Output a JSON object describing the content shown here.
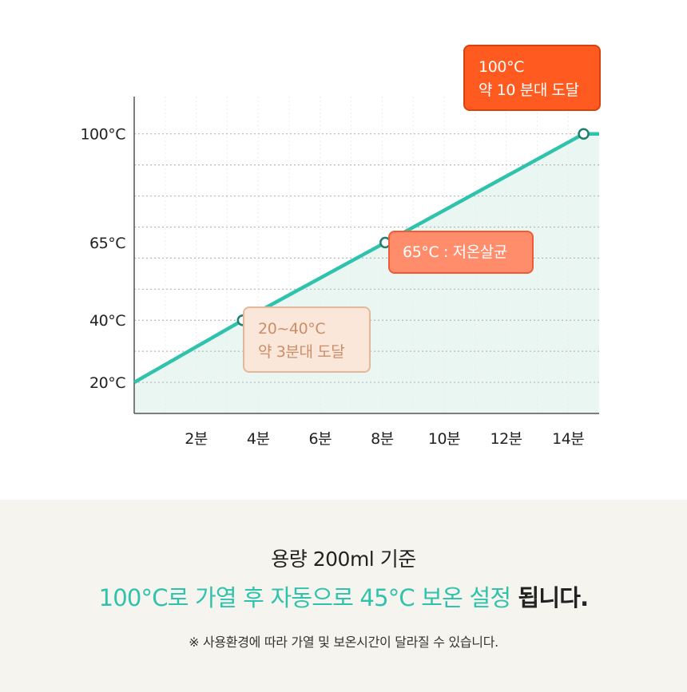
{
  "chart_data": {
    "type": "line",
    "x_unit": "분",
    "y_unit": "°C",
    "xlim": [
      0,
      15
    ],
    "ylim": [
      10,
      112
    ],
    "x_ticks": [
      2,
      4,
      6,
      8,
      10,
      12,
      14
    ],
    "x_tick_labels": [
      "2분",
      "4분",
      "6분",
      "8분",
      "10분",
      "12분",
      "14분"
    ],
    "y_ticks": [
      20,
      40,
      65,
      100
    ],
    "y_tick_labels": [
      "20°C",
      "40°C",
      "65°C",
      "100°C"
    ],
    "grid": true,
    "series": [
      {
        "x": [
          0,
          3.5,
          8.1,
          14.5,
          15
        ],
        "y": [
          20,
          40,
          65,
          100,
          100
        ],
        "markers": [
          1,
          2,
          3
        ],
        "color": "#2fc2ac",
        "fill": "#eaf6f2"
      }
    ],
    "annotations": [
      {
        "id": "low",
        "lines": [
          "20~40°C",
          "약 3분대 도달"
        ]
      },
      {
        "id": "mid",
        "lines": [
          "65°C : 저온살균"
        ]
      },
      {
        "id": "top",
        "lines": [
          "100°C",
          "약 10 분대 도달"
        ]
      }
    ]
  },
  "footer": {
    "basis": "용량 200ml 기준",
    "headline_highlight": "100°C로 가열 후 자동으로 45°C 보온 설정",
    "headline_tail": " 됩니다.",
    "note": "※ 사용환경에 따라 가열 및 보온시간이 달라질 수 있습니다."
  },
  "colors": {
    "line": "#2fc2ac",
    "area": "#eaf6f2",
    "callout_top": "#ff5a1f",
    "callout_mid": "#ff8c6b",
    "callout_low": "#fbe6da",
    "footer_bg": "#f5f4ef"
  }
}
